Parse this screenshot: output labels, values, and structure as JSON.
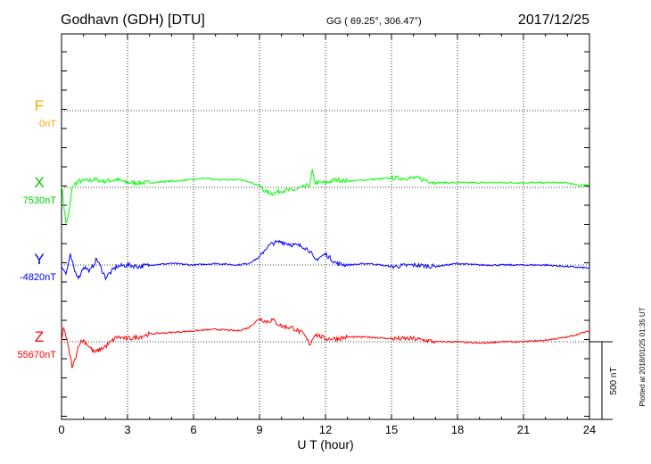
{
  "header": {
    "station": "Godhavn (GDH)  [DTU]",
    "coords": "GG ( 69.25°, 306.47°)",
    "date": "2017/12/25"
  },
  "footer": {
    "plotted": "Plotted at 2018/01/25 01:35 UT"
  },
  "colors": {
    "F": "#ffa500",
    "X": "#00ff00",
    "Y": "#0000ff",
    "Z": "#ff0000"
  },
  "chart_data": {
    "type": "line",
    "xlabel": "U T (hour)",
    "xlim": [
      0,
      24
    ],
    "xticks": [
      "0",
      "3",
      "6",
      "9",
      "12",
      "15",
      "18",
      "21",
      "24"
    ],
    "scale_bar_label": "500 nT",
    "series": [
      {
        "name": "F",
        "baseline_label": "0nT",
        "color": "#ffa500",
        "x": [],
        "y": []
      },
      {
        "name": "X",
        "baseline_label": "7530nT",
        "color": "#00ff00",
        "x": [
          0,
          0.1,
          0.2,
          0.3,
          0.5,
          0.8,
          1.0,
          1.5,
          2.0,
          2.5,
          3.0,
          3.5,
          4.0,
          5.0,
          6.0,
          6.5,
          7.0,
          8.0,
          8.5,
          9.0,
          9.3,
          9.6,
          10.0,
          10.5,
          11.0,
          11.3,
          11.4,
          11.5,
          12.0,
          12.5,
          13.0,
          14.0,
          15.0,
          16.0,
          16.5,
          17.0,
          18.0,
          19.0,
          20.0,
          21.0,
          22.0,
          23.0,
          23.5,
          24.0
        ],
        "y": [
          7550,
          7420,
          7300,
          7330,
          7540,
          7570,
          7570,
          7580,
          7570,
          7580,
          7560,
          7560,
          7560,
          7570,
          7580,
          7590,
          7580,
          7580,
          7570,
          7540,
          7500,
          7490,
          7510,
          7510,
          7530,
          7550,
          7640,
          7560,
          7560,
          7580,
          7570,
          7580,
          7590,
          7590,
          7580,
          7560,
          7560,
          7560,
          7560,
          7560,
          7560,
          7560,
          7540,
          7550
        ]
      },
      {
        "name": "Y",
        "baseline_label": "-4820nT",
        "color": "#0000ff",
        "x": [
          0,
          0.2,
          0.4,
          0.6,
          0.8,
          1.0,
          1.3,
          1.6,
          2.0,
          2.5,
          3.0,
          3.5,
          4.0,
          5.0,
          6.0,
          7.0,
          8.0,
          8.5,
          9.0,
          9.3,
          9.6,
          10.0,
          10.5,
          11.0,
          11.3,
          11.5,
          12.0,
          12.5,
          13.0,
          14.0,
          15.0,
          16.0,
          17.0,
          18.0,
          19.0,
          20.0,
          21.0,
          22.0,
          23.0,
          24.0
        ],
        "y": [
          -4820,
          -4880,
          -4760,
          -4860,
          -4900,
          -4830,
          -4860,
          -4780,
          -4900,
          -4830,
          -4820,
          -4830,
          -4820,
          -4810,
          -4820,
          -4810,
          -4820,
          -4810,
          -4770,
          -4710,
          -4680,
          -4670,
          -4690,
          -4700,
          -4730,
          -4790,
          -4750,
          -4810,
          -4820,
          -4810,
          -4830,
          -4820,
          -4830,
          -4810,
          -4820,
          -4820,
          -4820,
          -4820,
          -4830,
          -4840
        ]
      },
      {
        "name": "Z",
        "baseline_label": "55670nT",
        "color": "#ff0000",
        "x": [
          0,
          0.1,
          0.3,
          0.5,
          0.8,
          1.0,
          1.5,
          2.0,
          2.5,
          3.0,
          3.5,
          4.0,
          5.0,
          6.0,
          7.0,
          8.0,
          8.5,
          9.0,
          9.3,
          9.6,
          10.0,
          10.5,
          11.0,
          11.3,
          11.5,
          12.0,
          12.5,
          13.0,
          14.0,
          15.0,
          16.0,
          17.0,
          18.0,
          19.0,
          20.0,
          21.0,
          22.0,
          23.0,
          24.0
        ],
        "y": [
          55670,
          55770,
          55640,
          55500,
          55660,
          55680,
          55600,
          55640,
          55700,
          55690,
          55700,
          55720,
          55730,
          55740,
          55750,
          55740,
          55760,
          55820,
          55800,
          55810,
          55770,
          55760,
          55720,
          55650,
          55720,
          55690,
          55690,
          55700,
          55700,
          55690,
          55690,
          55670,
          55670,
          55660,
          55670,
          55670,
          55680,
          55700,
          55740
        ]
      }
    ]
  }
}
